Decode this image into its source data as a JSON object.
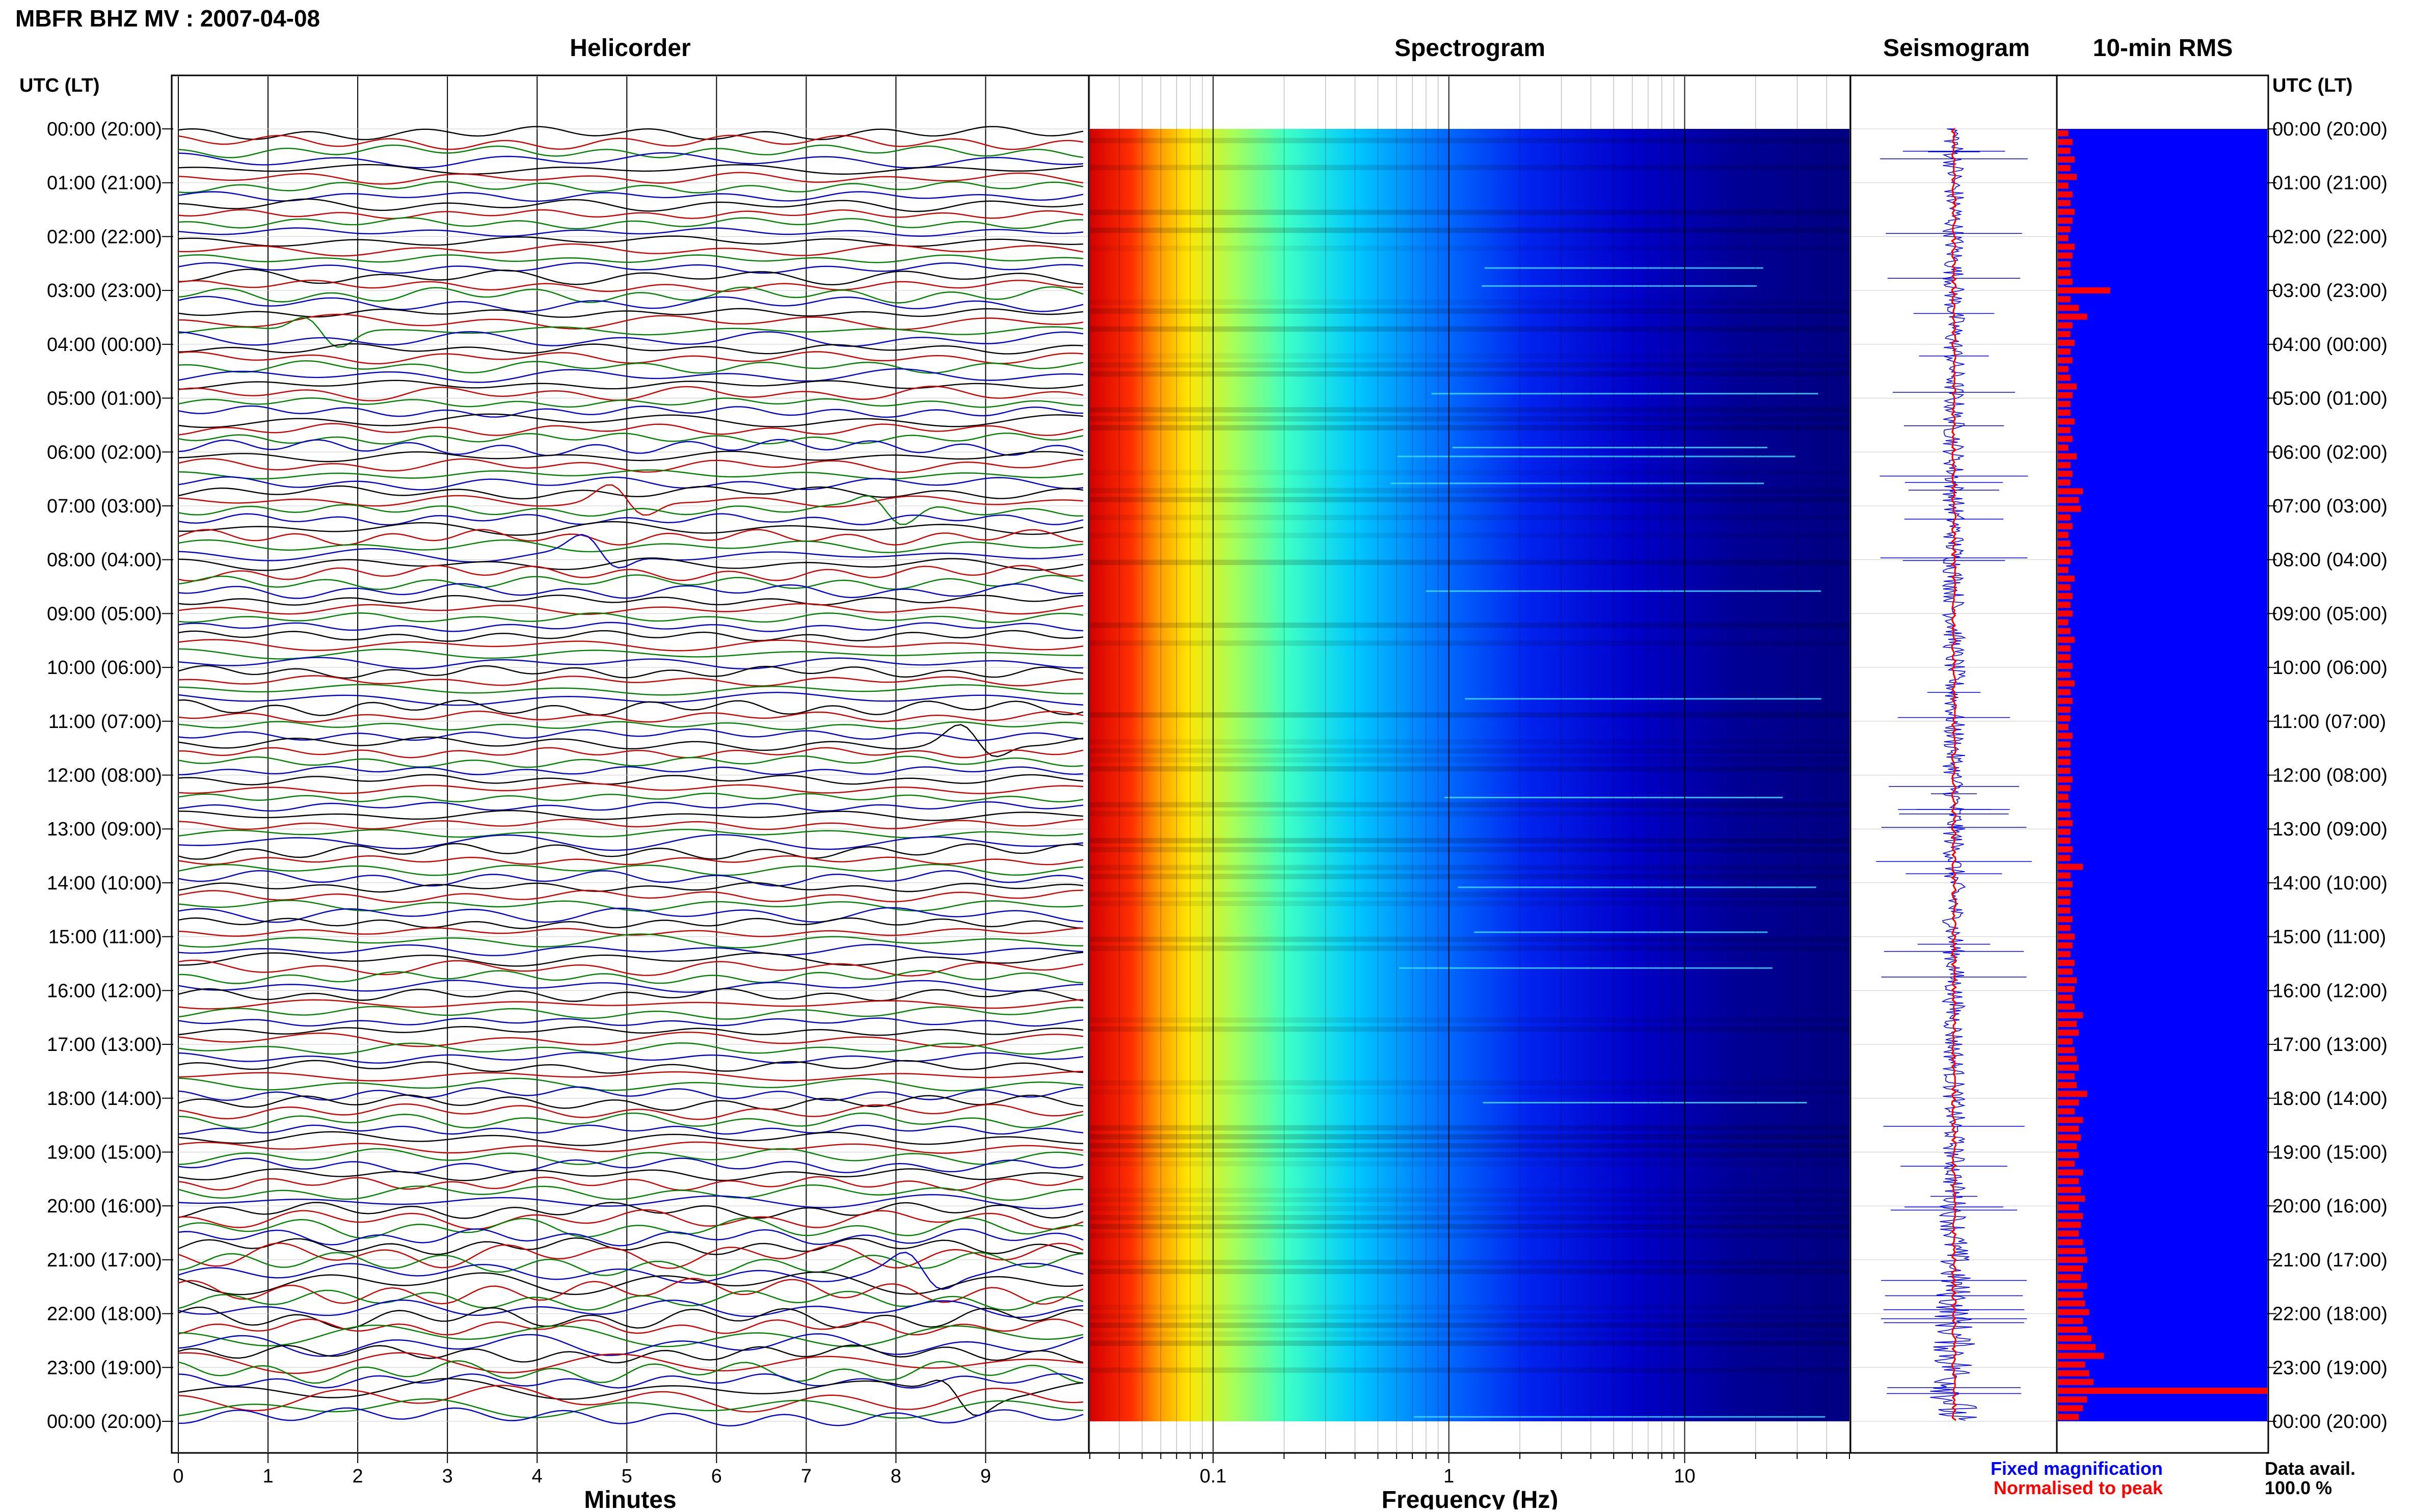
{
  "header": {
    "title": "MBFR BHZ MV : 2007-04-08"
  },
  "panels": {
    "helicorder": "Helicorder",
    "spectrogram": "Spectrogram",
    "seismogram": "Seismogram",
    "rms": "10-min RMS"
  },
  "time_axis": {
    "label": "UTC (LT)",
    "ticks": [
      "00:00 (20:00)",
      "01:00 (21:00)",
      "02:00 (22:00)",
      "03:00 (23:00)",
      "04:00 (00:00)",
      "05:00 (01:00)",
      "06:00 (02:00)",
      "07:00 (03:00)",
      "08:00 (04:00)",
      "09:00 (05:00)",
      "10:00 (06:00)",
      "11:00 (07:00)",
      "12:00 (08:00)",
      "13:00 (09:00)",
      "14:00 (10:00)",
      "15:00 (11:00)",
      "16:00 (12:00)",
      "17:00 (13:00)",
      "18:00 (14:00)",
      "19:00 (15:00)",
      "20:00 (16:00)",
      "21:00 (17:00)",
      "22:00 (18:00)",
      "23:00 (19:00)",
      "00:00 (20:00)"
    ]
  },
  "x_axes": {
    "minutes_label": "Minutes",
    "minutes_ticks": [
      "0",
      "1",
      "2",
      "3",
      "4",
      "5",
      "6",
      "7",
      "8",
      "9"
    ],
    "frequency_label": "Frequency (Hz)",
    "frequency_ticks": [
      "0.1",
      "1",
      "10"
    ]
  },
  "legend": {
    "fixed": "Fixed magnification",
    "normalised": "Normalised to peak",
    "data_avail_label": "Data avail.",
    "data_avail_value": "100.0 %"
  },
  "colors": {
    "fixed": "#0000ff",
    "normalised": "#ff0000",
    "rms_bg": "#0000ff",
    "rms_bar": "#ff0000",
    "trace_colors": [
      "#000000",
      "#cc0000",
      "#008000",
      "#0000cc"
    ]
  },
  "chart_data": [
    {
      "type": "line",
      "title": "Helicorder",
      "xlabel": "Minutes",
      "xlim": [
        0,
        10
      ],
      "lines_per_hour": 6,
      "hours": 24,
      "events": [
        {
          "time": "03:40",
          "minute": 1.6
        },
        {
          "time": "06:50",
          "minute": 5.0
        },
        {
          "time": "07:00",
          "minute": 7.9
        },
        {
          "time": "07:50",
          "minute": 4.7
        },
        {
          "time": "11:20",
          "minute": 8.9
        },
        {
          "time": "21:10",
          "minute": 8.3
        },
        {
          "time": "23:20",
          "minute": 8.7
        }
      ]
    },
    {
      "type": "heatmap",
      "title": "Spectrogram",
      "xlabel": "Frequency (Hz)",
      "xscale": "log",
      "xlim": [
        0.03,
        50
      ],
      "colormap": "jet",
      "dominant_band_hz": [
        0.03,
        0.1
      ]
    },
    {
      "type": "line",
      "title": "Seismogram",
      "series": [
        {
          "name": "Fixed magnification"
        },
        {
          "name": "Normalised to peak"
        }
      ]
    },
    {
      "type": "bar",
      "title": "10-min RMS",
      "orientation": "horizontal",
      "values": [
        0.05,
        0.07,
        0.06,
        0.08,
        0.06,
        0.09,
        0.05,
        0.07,
        0.06,
        0.08,
        0.07,
        0.06,
        0.05,
        0.08,
        0.07,
        0.06,
        0.06,
        0.07,
        0.25,
        0.06,
        0.1,
        0.14,
        0.07,
        0.06,
        0.08,
        0.06,
        0.07,
        0.05,
        0.06,
        0.09,
        0.07,
        0.06,
        0.06,
        0.08,
        0.06,
        0.07,
        0.05,
        0.09,
        0.06,
        0.07,
        0.06,
        0.12,
        0.1,
        0.11,
        0.06,
        0.07,
        0.05,
        0.06,
        0.07,
        0.06,
        0.05,
        0.08,
        0.06,
        0.07,
        0.06,
        0.07,
        0.05,
        0.06,
        0.08,
        0.06,
        0.06,
        0.07,
        0.06,
        0.08,
        0.06,
        0.07,
        0.06,
        0.06,
        0.05,
        0.07,
        0.06,
        0.06,
        0.06,
        0.06,
        0.07,
        0.06,
        0.05,
        0.06,
        0.06,
        0.07,
        0.06,
        0.06,
        0.07,
        0.06,
        0.12,
        0.06,
        0.07,
        0.06,
        0.06,
        0.06,
        0.07,
        0.06,
        0.08,
        0.07,
        0.06,
        0.08,
        0.07,
        0.09,
        0.08,
        0.07,
        0.08,
        0.12,
        0.09,
        0.1,
        0.07,
        0.08,
        0.09,
        0.1,
        0.08,
        0.09,
        0.14,
        0.1,
        0.08,
        0.12,
        0.1,
        0.11,
        0.09,
        0.1,
        0.08,
        0.12,
        0.1,
        0.11,
        0.13,
        0.1,
        0.12,
        0.11,
        0.1,
        0.12,
        0.13,
        0.14,
        0.12,
        0.11,
        0.14,
        0.12,
        0.13,
        0.15,
        0.12,
        0.14,
        0.16,
        0.18,
        0.22,
        0.13,
        0.15,
        0.17,
        1.0,
        0.14,
        0.12,
        0.1
      ]
    }
  ]
}
